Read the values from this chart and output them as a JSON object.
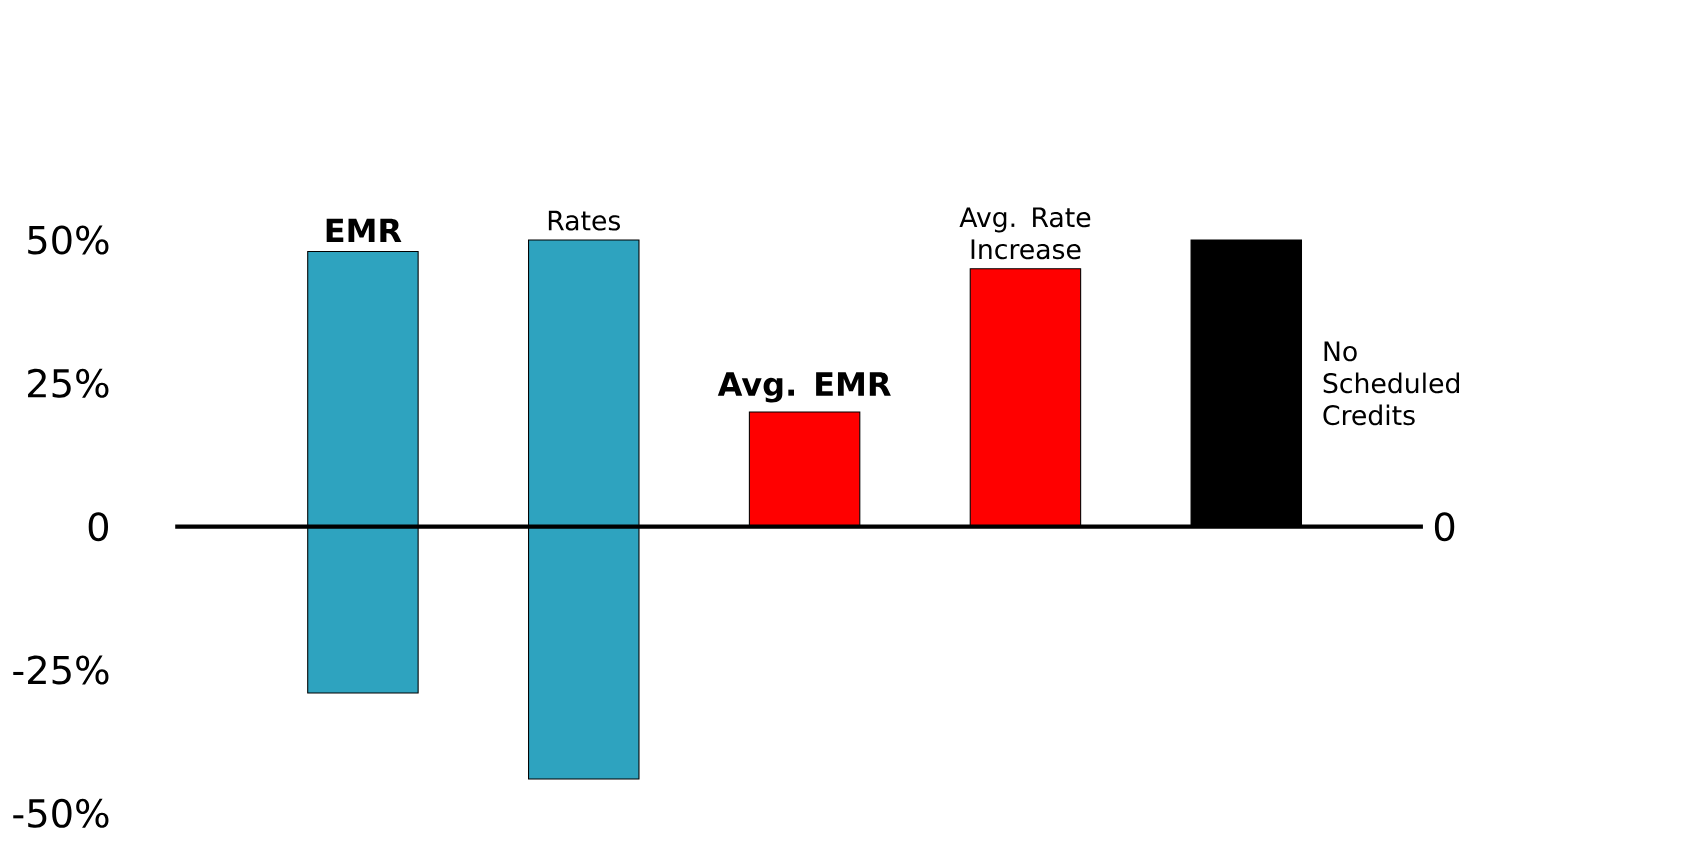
{
  "chart_data": {
    "type": "bar",
    "categories": [
      "EMR",
      "Rates",
      "Avg. EMR",
      "Avg. Rate Increase",
      "No Scheduled Credits"
    ],
    "values": [
      77,
      94,
      20,
      45,
      50
    ],
    "base": [
      -29,
      -44,
      0,
      0,
      0
    ],
    "colors": [
      "#2ea3bf",
      "#2ea3bf",
      "#ff0000",
      "#ff0000",
      "#000000"
    ],
    "ylim": [
      -50,
      50
    ],
    "yticks": [
      {
        "value": 50,
        "label": "50%"
      },
      {
        "value": 25,
        "label": "25%"
      },
      0,
      {
        "value": -25,
        "label": "-25%"
      },
      {
        "value": -50,
        "label": "-50%"
      }
    ],
    "ref_lines": [
      {
        "axis": "y",
        "value": 0,
        "label": "0",
        "color": "#000000"
      }
    ]
  }
}
